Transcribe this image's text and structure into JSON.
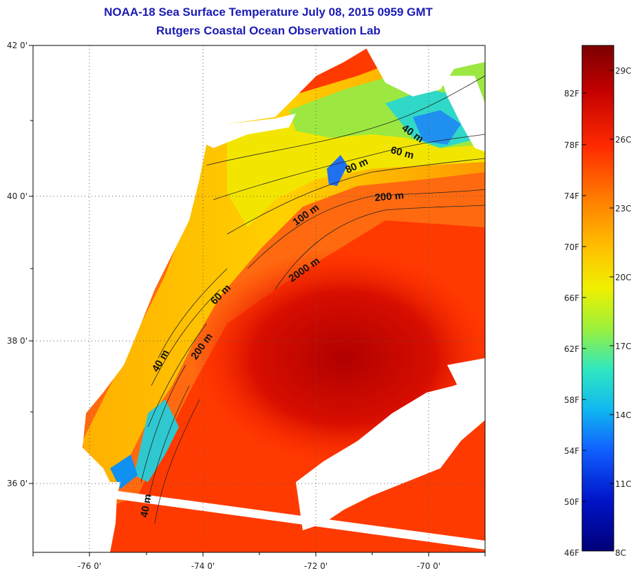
{
  "title_line1": "NOAA-18 Sea Surface Temperature July 08, 2015 0959 GMT",
  "title_line2": "Rutgers Coastal Ocean Observation Lab",
  "map": {
    "lon_ticks": [
      "-76 0'",
      "-74 0'",
      "-72 0'",
      "-70 0'"
    ],
    "lat_ticks": [
      "42 0'",
      "40 0'",
      "38 0'",
      "36 0'"
    ],
    "gridlines": "dotted"
  },
  "contour_labels": [
    "40 m",
    "60 m",
    "80 m",
    "200 m",
    "100 m",
    "2000 m",
    "60 m",
    "40 m",
    "200 m",
    "40 m"
  ],
  "colorbar": {
    "f_labels": [
      "82F",
      "78F",
      "74F",
      "70F",
      "66F",
      "62F",
      "58F",
      "54F",
      "50F",
      "46F"
    ],
    "c_labels": [
      "29C",
      "26C",
      "23C",
      "20C",
      "17C",
      "14C",
      "11C",
      "8C"
    ],
    "colors": [
      "#7a0000",
      "#c40000",
      "#ff2a00",
      "#ff7a00",
      "#ffc000",
      "#f0f000",
      "#9cf03a",
      "#30e8c0",
      "#10b8f0",
      "#1060ff",
      "#0014c8",
      "#000078"
    ]
  }
}
